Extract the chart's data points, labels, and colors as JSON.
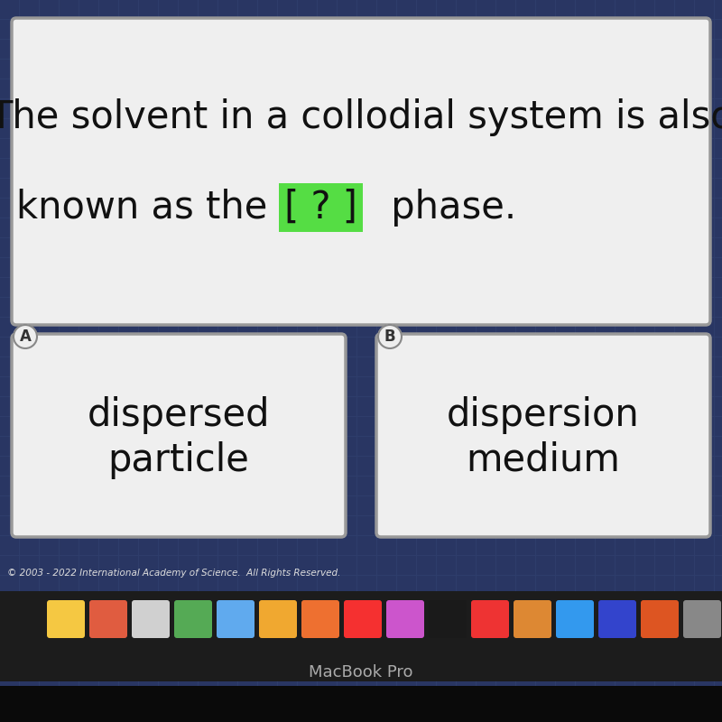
{
  "bg_color": "#2e3d6b",
  "tile_color": "#283460",
  "question_box_color": "#efefef",
  "question_box_edge": "#999999",
  "answer_box_color": "#efefef",
  "answer_box_edge": "#999999",
  "question_line1": "The solvent in a collodial system is also",
  "question_line2_pre": "known as the ",
  "question_bracket": "[ ? ]",
  "question_line2_post": " phase.",
  "bracket_bg": "#55dd44",
  "answer_a_label": "A",
  "answer_b_label": "B",
  "answer_a_text1": "dispersed",
  "answer_a_text2": "particle",
  "answer_b_text1": "dispersion",
  "answer_b_text2": "medium",
  "copyright_text": "© 2003 - 2022 International Academy of Science.  All Rights Reserved.",
  "macbook_text": "MacBook Pro",
  "question_fontsize": 30,
  "answer_fontsize": 30,
  "label_fontsize": 12,
  "copyright_fontsize": 7.5,
  "macbook_fontsize": 13
}
